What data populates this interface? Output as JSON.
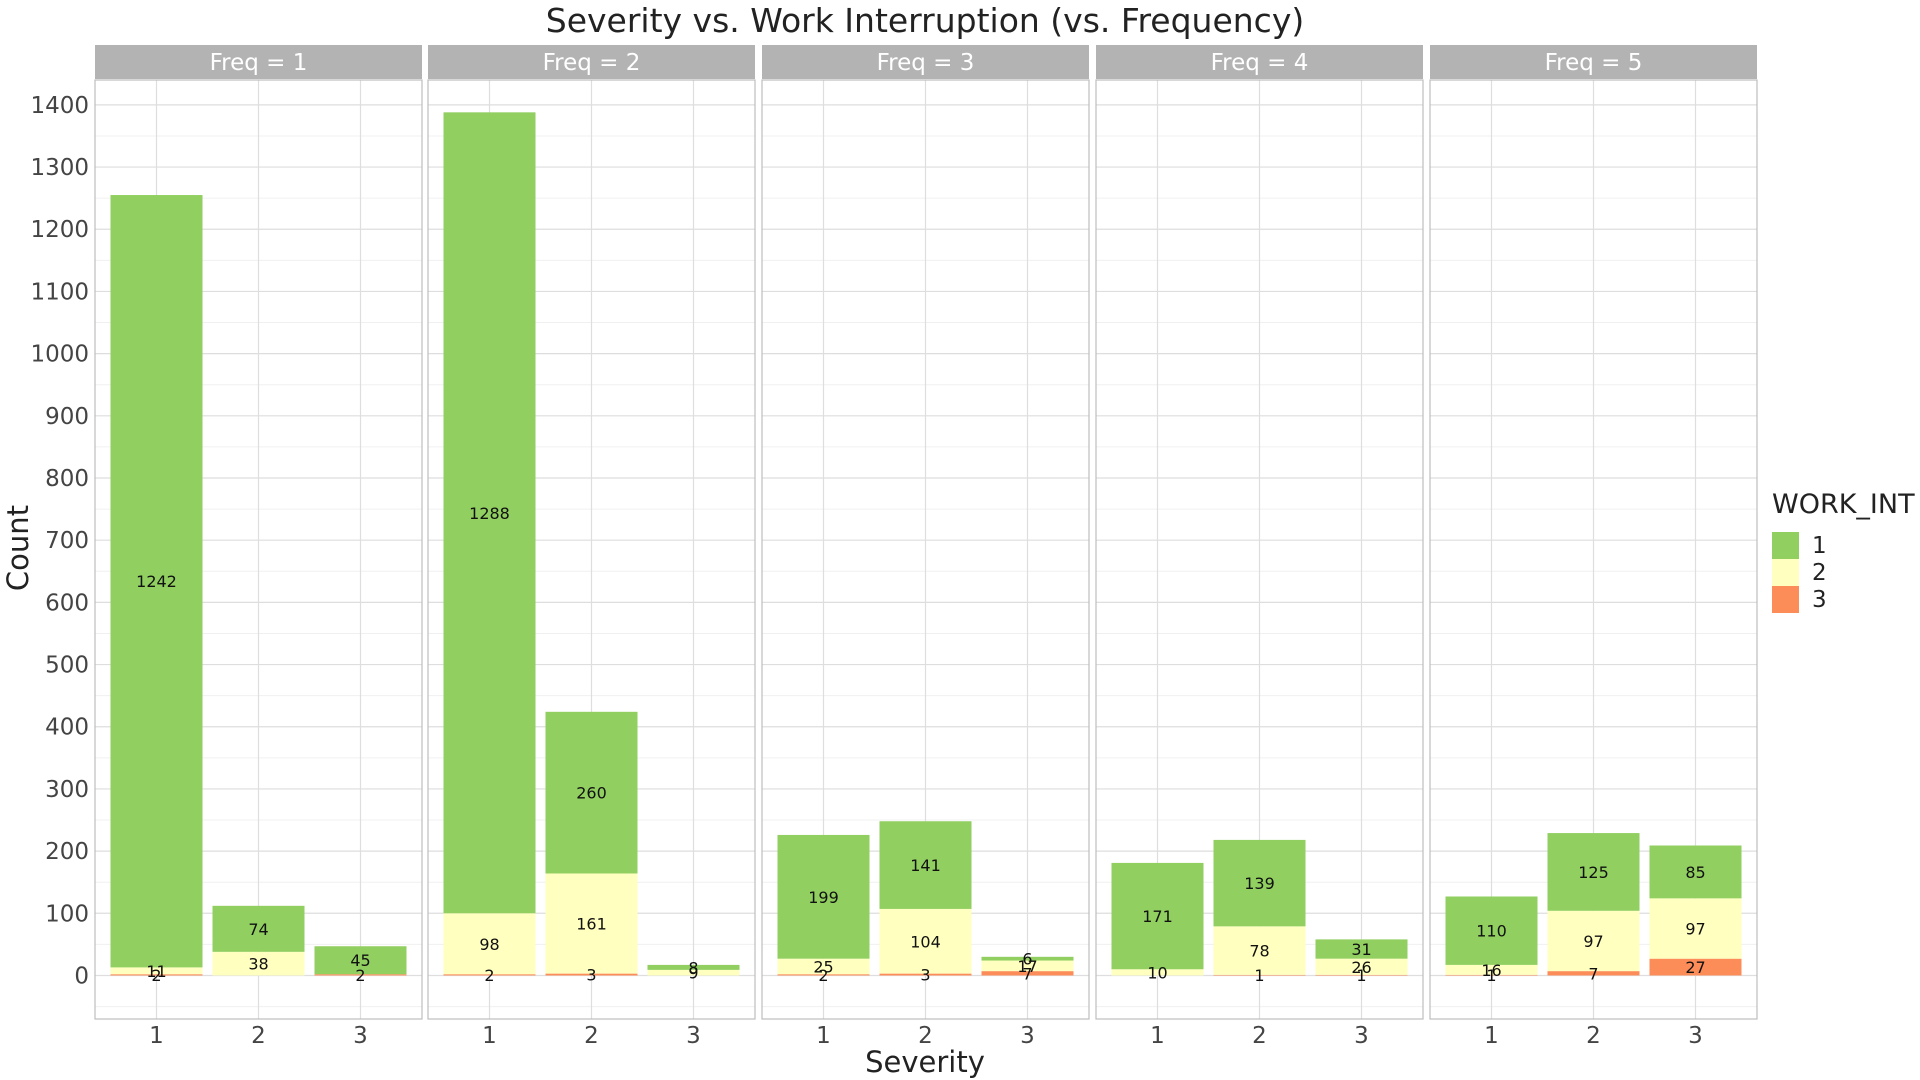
{
  "chart_data": {
    "type": "bar",
    "stacked": true,
    "title": "Severity vs. Work Interruption (vs. Frequency)",
    "xlabel": "Severity",
    "ylabel": "Count",
    "ylim": [
      -70,
      1440
    ],
    "yticks": [
      0,
      100,
      200,
      300,
      400,
      500,
      600,
      700,
      800,
      900,
      1000,
      1100,
      1200,
      1300,
      1400
    ],
    "categories": [
      "1",
      "2",
      "3"
    ],
    "legend": {
      "title": "WORK_INT",
      "position": "right",
      "entries": [
        {
          "key": "1",
          "label": "1",
          "color": "#91CF60"
        },
        {
          "key": "2",
          "label": "2",
          "color": "#FFFFBF"
        },
        {
          "key": "3",
          "label": "3",
          "color": "#FC8D59"
        }
      ]
    },
    "facets": [
      {
        "label": "Freq = 1",
        "bars": [
          {
            "category": "1",
            "values": {
              "1": 1242,
              "2": 11,
              "3": 2
            }
          },
          {
            "category": "2",
            "values": {
              "1": 74,
              "2": 38,
              "3": 0
            }
          },
          {
            "category": "3",
            "values": {
              "1": 45,
              "2": 0,
              "3": 2
            }
          }
        ]
      },
      {
        "label": "Freq = 2",
        "bars": [
          {
            "category": "1",
            "values": {
              "1": 1288,
              "2": 98,
              "3": 2
            }
          },
          {
            "category": "2",
            "values": {
              "1": 260,
              "2": 161,
              "3": 3
            }
          },
          {
            "category": "3",
            "values": {
              "1": 8,
              "2": 9,
              "3": 0
            }
          }
        ]
      },
      {
        "label": "Freq = 3",
        "bars": [
          {
            "category": "1",
            "values": {
              "1": 199,
              "2": 25,
              "3": 2
            }
          },
          {
            "category": "2",
            "values": {
              "1": 141,
              "2": 104,
              "3": 3
            }
          },
          {
            "category": "3",
            "values": {
              "1": 6,
              "2": 17,
              "3": 7
            }
          }
        ]
      },
      {
        "label": "Freq = 4",
        "bars": [
          {
            "category": "1",
            "values": {
              "1": 171,
              "2": 10,
              "3": 0
            }
          },
          {
            "category": "2",
            "values": {
              "1": 139,
              "2": 78,
              "3": 1
            }
          },
          {
            "category": "3",
            "values": {
              "1": 31,
              "2": 26,
              "3": 1
            }
          }
        ]
      },
      {
        "label": "Freq = 5",
        "bars": [
          {
            "category": "1",
            "values": {
              "1": 110,
              "2": 16,
              "3": 1
            }
          },
          {
            "category": "2",
            "values": {
              "1": 125,
              "2": 97,
              "3": 7
            }
          },
          {
            "category": "3",
            "values": {
              "1": 85,
              "2": 97,
              "3": 27
            }
          }
        ]
      }
    ],
    "grid": true
  }
}
